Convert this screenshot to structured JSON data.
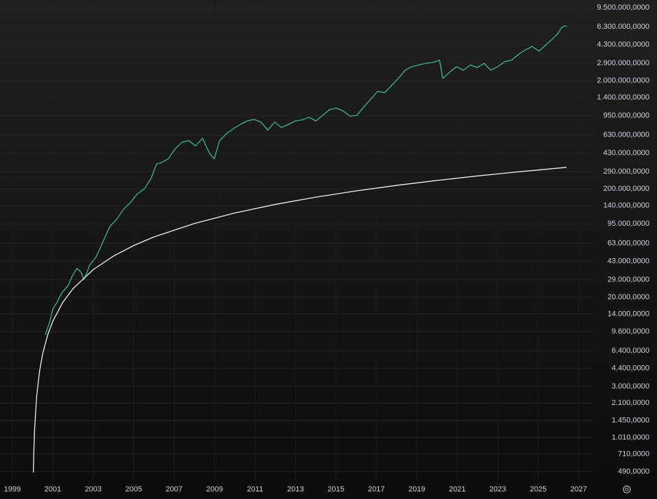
{
  "chart_data": {
    "type": "line",
    "log_y": true,
    "grid": true,
    "xlim": [
      1998.39,
      2027.75
    ],
    "xticks": [
      1999,
      2001,
      2003,
      2005,
      2007,
      2009,
      2011,
      2013,
      2015,
      2017,
      2019,
      2021,
      2023,
      2025,
      2027
    ],
    "ylim": [
      405,
      11150000
    ],
    "yticks": [
      {
        "value": 9500000,
        "label": "9.500.000,0000"
      },
      {
        "value": 6300000,
        "label": "6.300.000,0000"
      },
      {
        "value": 4300000,
        "label": "4.300.000,0000"
      },
      {
        "value": 2900000,
        "label": "2.900.000,0000"
      },
      {
        "value": 2000000,
        "label": "2.000.000,0000"
      },
      {
        "value": 1400000,
        "label": "1.400.000,0000"
      },
      {
        "value": 950000,
        "label": "950.000,0000"
      },
      {
        "value": 630000,
        "label": "630.000,0000"
      },
      {
        "value": 430000,
        "label": "430.000,0000"
      },
      {
        "value": 290000,
        "label": "290.000,0000"
      },
      {
        "value": 200000,
        "label": "200.000,0000"
      },
      {
        "value": 140000,
        "label": "140.000,0000"
      },
      {
        "value": 95000,
        "label": "95.000,0000"
      },
      {
        "value": 63000,
        "label": "63.000,0000"
      },
      {
        "value": 43000,
        "label": "43.000,0000"
      },
      {
        "value": 29000,
        "label": "29.000,0000"
      },
      {
        "value": 20000,
        "label": "20.000,0000"
      },
      {
        "value": 14000,
        "label": "14.000,0000"
      },
      {
        "value": 9600,
        "label": "9.600,0000"
      },
      {
        "value": 6400,
        "label": "6.400,0000"
      },
      {
        "value": 4400,
        "label": "4.400,0000"
      },
      {
        "value": 3000,
        "label": "3.000,0000"
      },
      {
        "value": 2100,
        "label": "2.100,0000"
      },
      {
        "value": 1450,
        "label": "1.450,0000"
      },
      {
        "value": 1010,
        "label": "1.010,0000"
      },
      {
        "value": 710,
        "label": "710,0000"
      },
      {
        "value": 490,
        "label": "490,0000"
      }
    ],
    "series": [
      {
        "color": "#3fb68f",
        "x": [
          2000.63,
          2000.83,
          2001.0,
          2001.21,
          2001.45,
          2001.78,
          2001.95,
          2002.19,
          2002.4,
          2002.53,
          2002.67,
          2002.8,
          2003.14,
          2003.48,
          2003.82,
          2004.16,
          2004.5,
          2004.84,
          2005.18,
          2005.52,
          2005.86,
          2006.13,
          2006.37,
          2006.71,
          2007.05,
          2007.39,
          2007.72,
          2008.06,
          2008.4,
          2008.74,
          2008.98,
          2009.25,
          2009.59,
          2009.93,
          2010.27,
          2010.61,
          2010.95,
          2011.29,
          2011.63,
          2011.97,
          2012.31,
          2012.65,
          2012.99,
          2013.33,
          2013.67,
          2014.01,
          2014.35,
          2014.68,
          2015.02,
          2015.36,
          2015.7,
          2016.04,
          2016.38,
          2016.72,
          2017.06,
          2017.4,
          2017.74,
          2018.08,
          2018.42,
          2018.76,
          2019.1,
          2019.44,
          2019.78,
          2020.12,
          2020.28,
          2020.62,
          2020.96,
          2021.3,
          2021.64,
          2021.98,
          2022.32,
          2022.66,
          2023.0,
          2023.34,
          2023.68,
          2024.02,
          2024.36,
          2024.7,
          2025.04,
          2025.38,
          2025.72,
          2025.95,
          2026.16,
          2026.29,
          2026.43
        ],
        "values": [
          9000,
          11500,
          15500,
          18000,
          22000,
          26000,
          31000,
          37000,
          34000,
          29000,
          33000,
          39000,
          47000,
          65000,
          90000,
          105000,
          130000,
          150000,
          180000,
          200000,
          250000,
          340000,
          350000,
          380000,
          470000,
          540000,
          560000,
          500000,
          590000,
          430000,
          380000,
          560000,
          650000,
          720000,
          790000,
          850000,
          880000,
          830000,
          700000,
          830000,
          740000,
          790000,
          850000,
          870000,
          920000,
          850000,
          960000,
          1080000,
          1120000,
          1050000,
          940000,
          960000,
          1150000,
          1350000,
          1600000,
          1550000,
          1800000,
          2100000,
          2500000,
          2700000,
          2800000,
          2900000,
          2950000,
          3100000,
          2100000,
          2400000,
          2700000,
          2500000,
          2800000,
          2650000,
          2900000,
          2500000,
          2700000,
          3000000,
          3100000,
          3500000,
          3850000,
          4150000,
          3750000,
          4300000,
          4900000,
          5400000,
          6200000,
          6400000,
          6400000
        ]
      },
      {
        "color": "#f2f2f2",
        "x": [
          2000.04,
          2000.06,
          2000.1,
          2000.2,
          2000.35,
          2000.5,
          2000.75,
          2001,
          2001.5,
          2002,
          2003,
          2004,
          2005,
          2006,
          2008,
          2010,
          2012,
          2014,
          2016,
          2018,
          2020,
          2022,
          2024,
          2026.4
        ],
        "values": [
          480,
          720,
          1200,
          2400,
          4200,
          6000,
          9000,
          12000,
          18000,
          24000,
          36000,
          48000,
          60000,
          72000,
          96000,
          120000,
          144000,
          168000,
          192000,
          216000,
          240000,
          264000,
          288000,
          316800
        ]
      }
    ]
  }
}
